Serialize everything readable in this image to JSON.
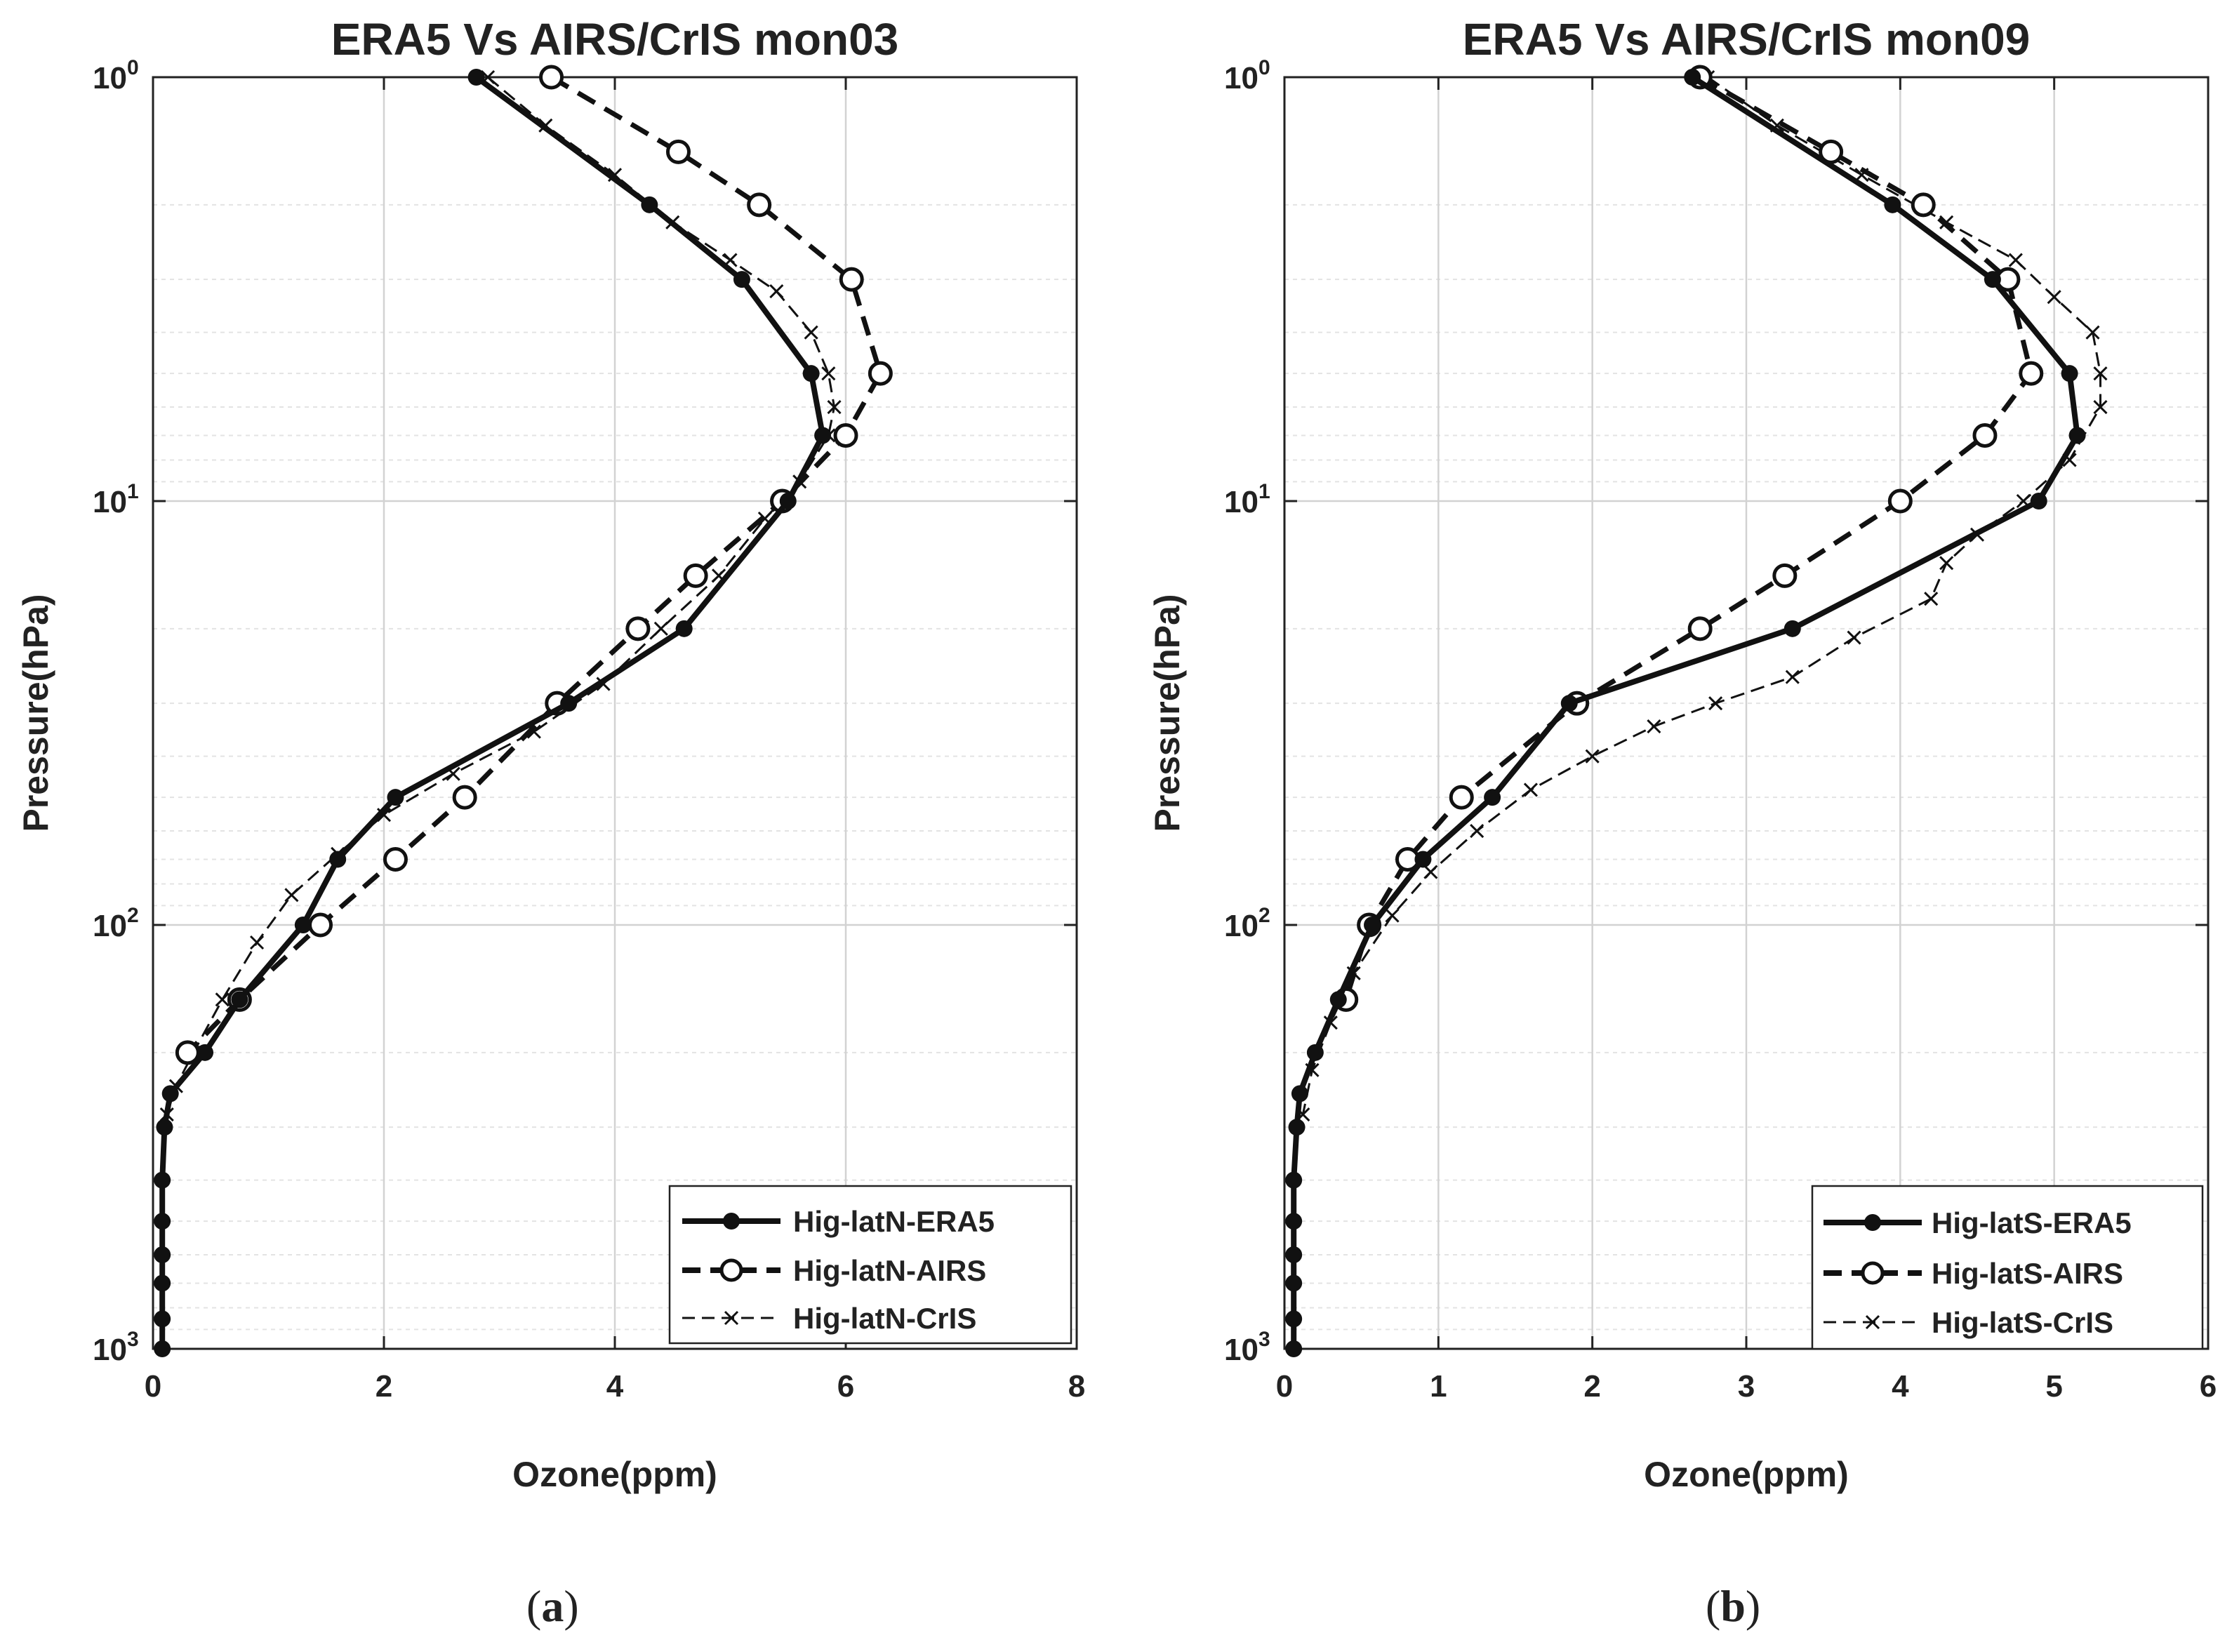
{
  "chart_data": [
    {
      "type": "line",
      "panel_label": "a",
      "title": "ERA5 Vs AIRS/CrIS mon03",
      "xlabel": "Ozone(ppm)",
      "ylabel": "Pressure(hPa)",
      "xlim": [
        0,
        8
      ],
      "ylim": [
        1,
        1000
      ],
      "yscale": "log",
      "yreversed": true,
      "xticks": [
        "0",
        "2",
        "4",
        "6",
        "8"
      ],
      "yticks": [
        {
          "base": "10",
          "exp": "0"
        },
        {
          "base": "10",
          "exp": "1"
        },
        {
          "base": "10",
          "exp": "2"
        },
        {
          "base": "10",
          "exp": "3"
        }
      ],
      "grid": true,
      "legend_position": "bottom-right",
      "series": [
        {
          "name": "Hig-latN-ERA5",
          "style": "solid-filled-dot",
          "points": [
            [
              2.8,
              1
            ],
            [
              4.3,
              2
            ],
            [
              5.1,
              3
            ],
            [
              5.7,
              5
            ],
            [
              5.8,
              7
            ],
            [
              5.5,
              10
            ],
            [
              4.6,
              20
            ],
            [
              3.6,
              30
            ],
            [
              2.1,
              50
            ],
            [
              1.6,
              70
            ],
            [
              1.3,
              100
            ],
            [
              0.75,
              150
            ],
            [
              0.45,
              200
            ],
            [
              0.15,
              250
            ],
            [
              0.1,
              300
            ],
            [
              0.08,
              400
            ],
            [
              0.08,
              500
            ],
            [
              0.08,
              600
            ],
            [
              0.08,
              700
            ],
            [
              0.08,
              850
            ],
            [
              0.08,
              1000
            ]
          ]
        },
        {
          "name": "Hig-latN-AIRS",
          "style": "dashed-open-circle",
          "points": [
            [
              3.45,
              1
            ],
            [
              4.55,
              1.5
            ],
            [
              5.25,
              2
            ],
            [
              6.05,
              3
            ],
            [
              6.3,
              5
            ],
            [
              6.0,
              7
            ],
            [
              5.45,
              10
            ],
            [
              4.7,
              15
            ],
            [
              4.2,
              20
            ],
            [
              3.5,
              30
            ],
            [
              2.7,
              50
            ],
            [
              2.1,
              70
            ],
            [
              1.45,
              100
            ],
            [
              0.75,
              150
            ],
            [
              0.3,
              200
            ]
          ]
        },
        {
          "name": "Hig-latN-CrIS",
          "style": "thin-dashed-x",
          "points": [
            [
              2.9,
              1
            ],
            [
              3.4,
              1.3
            ],
            [
              4.0,
              1.7
            ],
            [
              4.5,
              2.2
            ],
            [
              5.0,
              2.7
            ],
            [
              5.4,
              3.2
            ],
            [
              5.7,
              4
            ],
            [
              5.85,
              5
            ],
            [
              5.9,
              6
            ],
            [
              5.85,
              7
            ],
            [
              5.6,
              9
            ],
            [
              5.3,
              11
            ],
            [
              4.9,
              15
            ],
            [
              4.4,
              20
            ],
            [
              3.9,
              27
            ],
            [
              3.3,
              35
            ],
            [
              2.6,
              44
            ],
            [
              2.0,
              55
            ],
            [
              1.6,
              68
            ],
            [
              1.2,
              85
            ],
            [
              0.9,
              110
            ],
            [
              0.6,
              150
            ],
            [
              0.35,
              200
            ],
            [
              0.2,
              240
            ],
            [
              0.12,
              280
            ]
          ]
        }
      ]
    },
    {
      "type": "line",
      "panel_label": "b",
      "title": "ERA5 Vs AIRS/CrIS mon09",
      "xlabel": "Ozone(ppm)",
      "ylabel": "Pressure(hPa)",
      "xlim": [
        0,
        6
      ],
      "ylim": [
        1,
        1000
      ],
      "yscale": "log",
      "yreversed": true,
      "xticks": [
        "0",
        "1",
        "2",
        "3",
        "4",
        "5",
        "6"
      ],
      "yticks": [
        {
          "base": "10",
          "exp": "0"
        },
        {
          "base": "10",
          "exp": "1"
        },
        {
          "base": "10",
          "exp": "2"
        },
        {
          "base": "10",
          "exp": "3"
        }
      ],
      "grid": true,
      "legend_position": "bottom-right",
      "series": [
        {
          "name": "Hig-latS-ERA5",
          "style": "solid-filled-dot",
          "points": [
            [
              2.65,
              1
            ],
            [
              3.95,
              2
            ],
            [
              4.6,
              3
            ],
            [
              5.1,
              5
            ],
            [
              5.15,
              7
            ],
            [
              4.9,
              10
            ],
            [
              3.3,
              20
            ],
            [
              1.85,
              30
            ],
            [
              1.35,
              50
            ],
            [
              0.9,
              70
            ],
            [
              0.57,
              100
            ],
            [
              0.35,
              150
            ],
            [
              0.2,
              200
            ],
            [
              0.1,
              250
            ],
            [
              0.08,
              300
            ],
            [
              0.06,
              400
            ],
            [
              0.06,
              500
            ],
            [
              0.06,
              600
            ],
            [
              0.06,
              700
            ],
            [
              0.06,
              850
            ],
            [
              0.06,
              1000
            ]
          ]
        },
        {
          "name": "Hig-latS-AIRS",
          "style": "dashed-open-circle",
          "points": [
            [
              2.7,
              1
            ],
            [
              3.55,
              1.5
            ],
            [
              4.15,
              2
            ],
            [
              4.7,
              3
            ],
            [
              4.85,
              5
            ],
            [
              4.55,
              7
            ],
            [
              4.0,
              10
            ],
            [
              3.25,
              15
            ],
            [
              2.7,
              20
            ],
            [
              1.9,
              30
            ],
            [
              1.15,
              50
            ],
            [
              0.8,
              70
            ],
            [
              0.55,
              100
            ],
            [
              0.4,
              150
            ]
          ]
        },
        {
          "name": "Hig-latS-CrIS",
          "style": "thin-dashed-x",
          "points": [
            [
              2.75,
              1
            ],
            [
              3.2,
              1.3
            ],
            [
              3.75,
              1.7
            ],
            [
              4.3,
              2.2
            ],
            [
              4.75,
              2.7
            ],
            [
              5.0,
              3.3
            ],
            [
              5.25,
              4
            ],
            [
              5.3,
              5
            ],
            [
              5.3,
              6
            ],
            [
              5.1,
              8
            ],
            [
              4.8,
              10
            ],
            [
              4.5,
              12
            ],
            [
              4.3,
              14
            ],
            [
              4.2,
              17
            ],
            [
              3.7,
              21
            ],
            [
              3.3,
              26
            ],
            [
              2.8,
              30
            ],
            [
              2.4,
              34
            ],
            [
              2.0,
              40
            ],
            [
              1.6,
              48
            ],
            [
              1.25,
              60
            ],
            [
              0.95,
              75
            ],
            [
              0.7,
              95
            ],
            [
              0.45,
              130
            ],
            [
              0.3,
              170
            ],
            [
              0.18,
              220
            ],
            [
              0.12,
              280
            ]
          ]
        }
      ]
    }
  ]
}
